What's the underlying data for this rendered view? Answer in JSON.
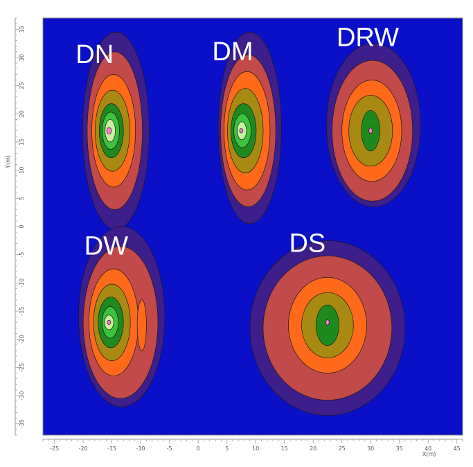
{
  "chart_data": {
    "type": "contour",
    "xlabel": "X(m)",
    "ylabel": "Y(m)",
    "xlim": [
      -27,
      46
    ],
    "ylim": [
      -37,
      37
    ],
    "x_ticks": [
      "-25",
      "-20",
      "-15",
      "-10",
      "-5",
      "0",
      "5",
      "10",
      "15",
      "20",
      "25",
      "30",
      "35",
      "40",
      "45"
    ],
    "x_tick_values": [
      -25,
      -20,
      -15,
      -10,
      -5,
      0,
      5,
      10,
      15,
      20,
      25,
      30,
      35,
      40,
      45
    ],
    "y_ticks": [
      "35",
      "30",
      "25",
      "20",
      "15",
      "10",
      "5",
      "0",
      "-5",
      "-10",
      "-15",
      "-20",
      "-25",
      "-30",
      "-35"
    ],
    "y_tick_values": [
      35,
      30,
      25,
      20,
      15,
      10,
      5,
      0,
      -5,
      -10,
      -15,
      -20,
      -25,
      -30,
      -35
    ],
    "background_color": "#0a10c8",
    "level_colors": [
      "#3d1e8a",
      "#c24a4a",
      "#ff6a1a",
      "#a88a12",
      "#1e8a1e",
      "#3cc23c",
      "#c8f0a0",
      "#ff7ad2"
    ],
    "regions": [
      {
        "name": "DN",
        "center_x": -15.5,
        "center_y": 17,
        "levels": [
          {
            "rx": 5.8,
            "ry": 17.5,
            "dx": 1.2,
            "dy": 0
          },
          {
            "rx": 4.8,
            "ry": 14,
            "dx": 1.0,
            "dy": 0
          },
          {
            "rx": 3.8,
            "ry": 10,
            "dx": 0.8,
            "dy": 0
          },
          {
            "rx": 3.0,
            "ry": 7.2,
            "dx": 0.6,
            "dy": 0
          },
          {
            "rx": 2.1,
            "ry": 4.8,
            "dx": 0.4,
            "dy": 0
          },
          {
            "rx": 1.5,
            "ry": 3.3,
            "dx": 0.3,
            "dy": 0
          },
          {
            "rx": 0.9,
            "ry": 2.0,
            "dx": 0.2,
            "dy": 0
          },
          {
            "rx": 0.4,
            "ry": 0.6,
            "dx": 0,
            "dy": 0
          }
        ]
      },
      {
        "name": "DM",
        "center_x": 7.5,
        "center_y": 17,
        "levels": [
          {
            "rx": 5.5,
            "ry": 17,
            "dx": 1.5,
            "dy": 0.5
          },
          {
            "rx": 4.8,
            "ry": 13.5,
            "dx": 1.2,
            "dy": 0
          },
          {
            "rx": 4.0,
            "ry": 10.5,
            "dx": 1.0,
            "dy": 0
          },
          {
            "rx": 3.1,
            "ry": 7.5,
            "dx": 0.7,
            "dy": 0
          },
          {
            "rx": 2.2,
            "ry": 4.8,
            "dx": 0.4,
            "dy": 0
          },
          {
            "rx": 1.5,
            "ry": 3.0,
            "dx": 0.2,
            "dy": 0
          },
          {
            "rx": 0.8,
            "ry": 1.6,
            "dx": 0.1,
            "dy": 0
          },
          {
            "rx": 0.3,
            "ry": 0.4,
            "dx": 0,
            "dy": 0
          }
        ]
      },
      {
        "name": "DRW",
        "center_x": 30,
        "center_y": 17,
        "levels": [
          {
            "rx": 8.2,
            "ry": 14.5,
            "dx": 0.5,
            "dy": 1
          },
          {
            "rx": 7.0,
            "ry": 12.5,
            "dx": 0.3,
            "dy": 0
          },
          {
            "rx": 5.2,
            "ry": 9.0,
            "dx": 0.2,
            "dy": 0
          },
          {
            "rx": 3.8,
            "ry": 6.3,
            "dx": 0,
            "dy": 0
          },
          {
            "rx": 1.6,
            "ry": 3.6,
            "dx": 0,
            "dy": 0
          },
          {
            "rx": 0.3,
            "ry": 0.5,
            "dx": 0,
            "dy": 0
          }
        ]
      },
      {
        "name": "DW",
        "center_x": -15.5,
        "center_y": -17,
        "levels": [
          {
            "rx": 7.5,
            "ry": 16,
            "dx": 2.2,
            "dy": 1
          },
          {
            "rx": 6.5,
            "ry": 13.5,
            "dx": 2.0,
            "dy": 0
          },
          {
            "rx": 4.3,
            "ry": 9.5,
            "dx": 0.8,
            "dy": 0
          },
          {
            "rx": 3.2,
            "ry": 6.8,
            "dx": 0.5,
            "dy": 0
          },
          {
            "rx": 2.2,
            "ry": 4.5,
            "dx": 0.3,
            "dy": 0
          },
          {
            "rx": 1.4,
            "ry": 2.8,
            "dx": 0.2,
            "dy": 0
          },
          {
            "rx": 0.8,
            "ry": 1.3,
            "dx": 0,
            "dy": 0
          },
          {
            "rx": 0.3,
            "ry": 0.4,
            "dx": 0,
            "dy": 0
          }
        ]
      },
      {
        "name": "DS",
        "center_x": 22.5,
        "center_y": -17,
        "levels": [
          {
            "rx": 13.5,
            "ry": 15.5,
            "dx": 0,
            "dy": -1
          },
          {
            "rx": 11.2,
            "ry": 12.8,
            "dx": 0,
            "dy": -1
          },
          {
            "rx": 6.8,
            "ry": 8.5,
            "dx": 0,
            "dy": -0.5
          },
          {
            "rx": 4.5,
            "ry": 5.8,
            "dx": 0,
            "dy": -0.5
          },
          {
            "rx": 2.0,
            "ry": 3.6,
            "dx": 0,
            "dy": -0.5
          },
          {
            "rx": 0.3,
            "ry": 0.5,
            "dx": 0,
            "dy": 0
          }
        ]
      }
    ],
    "extra_blobs": [
      {
        "x": -9.8,
        "y": -17.5,
        "rx": 0.8,
        "ry": 4.5,
        "level": 2
      }
    ],
    "grid": false,
    "legend": false
  }
}
